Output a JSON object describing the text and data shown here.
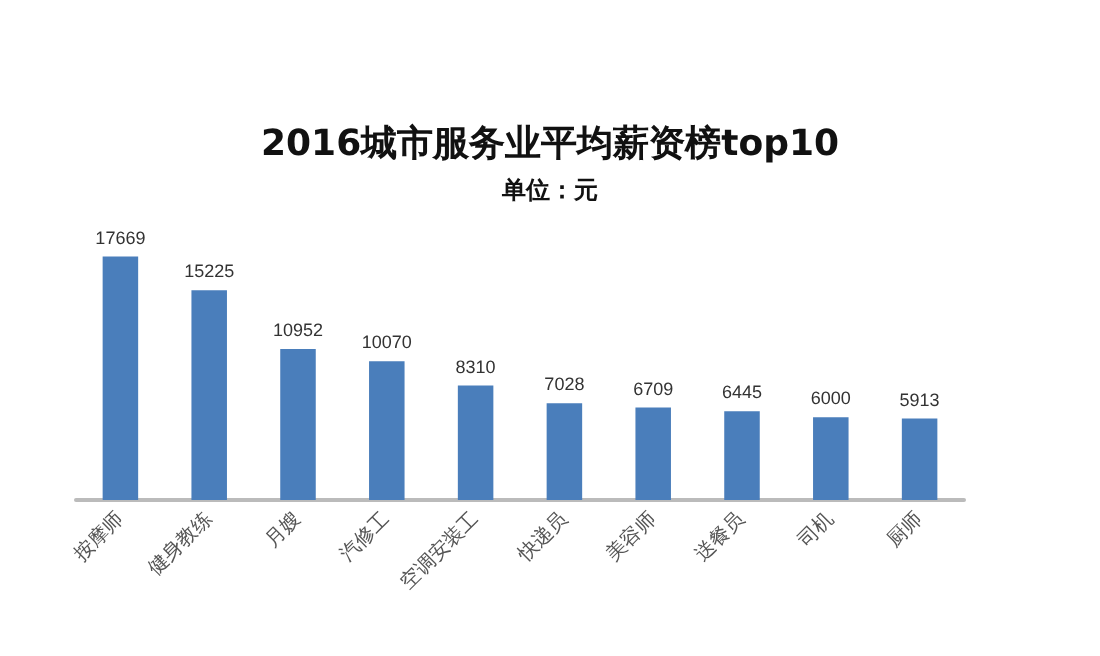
{
  "chart_data": {
    "type": "bar",
    "title": "2016城市服务业平均薪资榜top10",
    "subtitle": "单位：元",
    "categories": [
      "按摩师",
      "健身教练",
      "月嫂",
      "汽修工",
      "空调安装工",
      "快递员",
      "美容师",
      "送餐员",
      "司机",
      "厨师"
    ],
    "values": [
      17669,
      15225,
      10952,
      10070,
      8310,
      7028,
      6709,
      6445,
      6000,
      5913
    ],
    "color": "#4a7ebb",
    "data_labels": true,
    "tick_labels": "x"
  }
}
